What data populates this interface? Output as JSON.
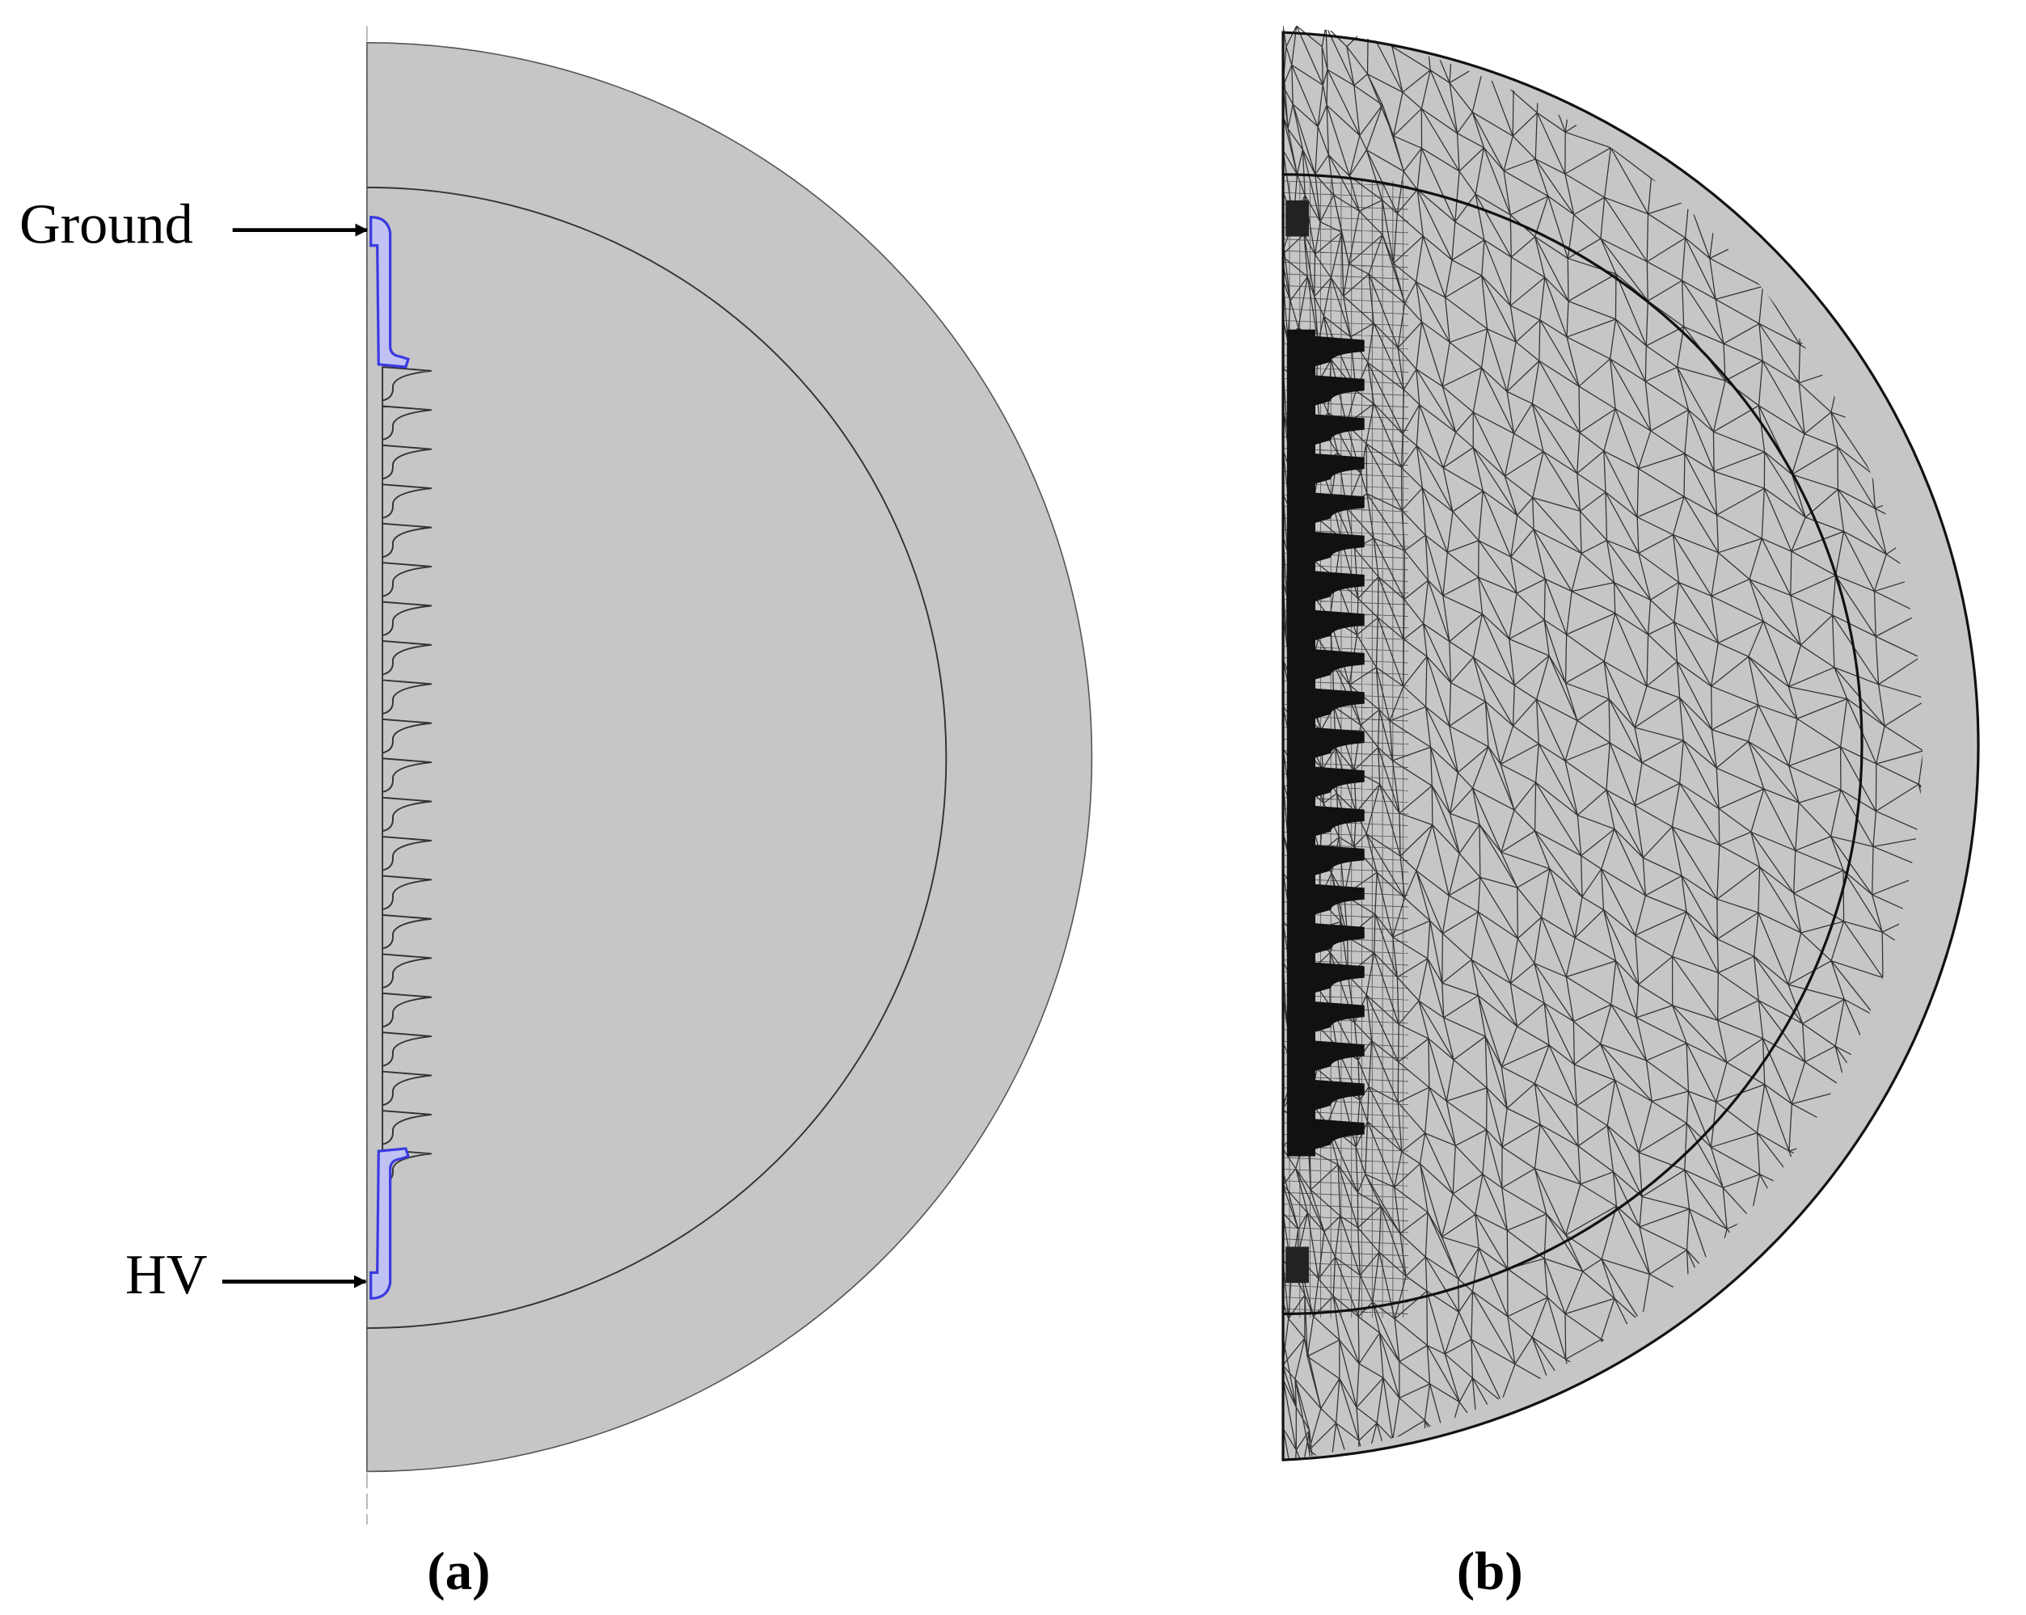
{
  "labels": {
    "ground": "Ground",
    "hv": "HV"
  },
  "panels": [
    {
      "label": "(a)"
    },
    {
      "label": "(b)"
    }
  ]
}
